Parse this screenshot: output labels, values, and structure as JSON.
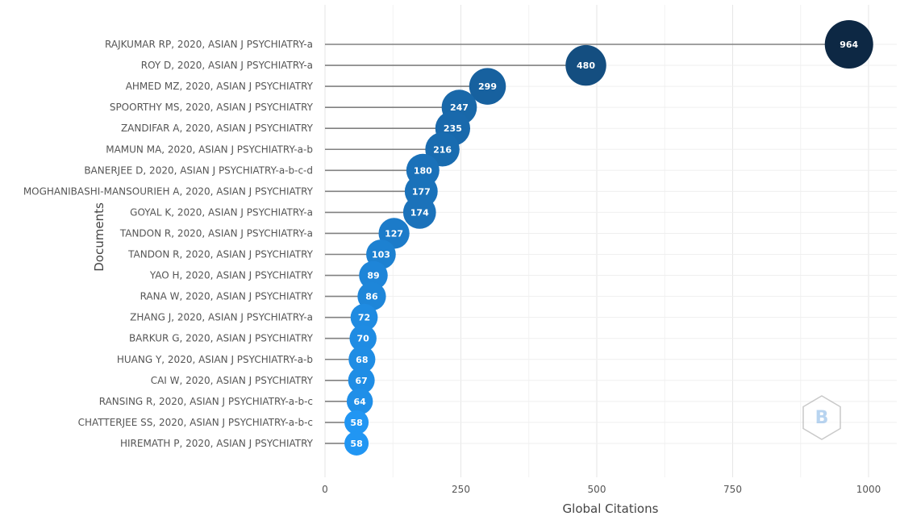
{
  "chart_data": {
    "type": "scatter",
    "style": "lollipop",
    "xlabel": "Global Citations",
    "ylabel": "Documents",
    "xlim": [
      0,
      1000
    ],
    "xticks": [
      0,
      250,
      500,
      750,
      1000
    ],
    "grid": true,
    "colors": {
      "low": "#2196f3",
      "high": "#0d2844",
      "stem": "#808080"
    },
    "categories": [
      "RAJKUMAR RP, 2020, ASIAN J PSYCHIATRY-a",
      "ROY D, 2020, ASIAN J PSYCHIATRY-a",
      "AHMED MZ, 2020, ASIAN J PSYCHIATRY",
      "SPOORTHY MS, 2020, ASIAN J PSYCHIATRY",
      "ZANDIFAR A, 2020, ASIAN J PSYCHIATRY",
      "MAMUN MA, 2020, ASIAN J PSYCHIATRY-a-b",
      "BANERJEE D, 2020, ASIAN J PSYCHIATRY-a-b-c-d",
      "MOGHANIBASHI-MANSOURIEH A, 2020, ASIAN J PSYCHIATRY",
      "GOYAL K, 2020, ASIAN J PSYCHIATRY-a",
      "TANDON R, 2020, ASIAN J PSYCHIATRY-a",
      "TANDON R, 2020, ASIAN J PSYCHIATRY",
      "YAO H, 2020, ASIAN J PSYCHIATRY",
      "RANA W, 2020, ASIAN J PSYCHIATRY",
      "ZHANG J, 2020, ASIAN J PSYCHIATRY-a",
      "BARKUR G, 2020, ASIAN J PSYCHIATRY",
      "HUANG Y, 2020, ASIAN J PSYCHIATRY-a-b",
      "CAI W, 2020, ASIAN J PSYCHIATRY",
      "RANSING R, 2020, ASIAN J PSYCHIATRY-a-b-c",
      "CHATTERJEE SS, 2020, ASIAN J PSYCHIATRY-a-b-c",
      "HIREMATH P, 2020, ASIAN J PSYCHIATRY"
    ],
    "values": [
      964,
      480,
      299,
      247,
      235,
      216,
      180,
      177,
      174,
      127,
      103,
      89,
      86,
      72,
      70,
      68,
      67,
      64,
      58,
      58
    ]
  },
  "watermark": {
    "icon": "bibliometrix-logo-icon"
  }
}
